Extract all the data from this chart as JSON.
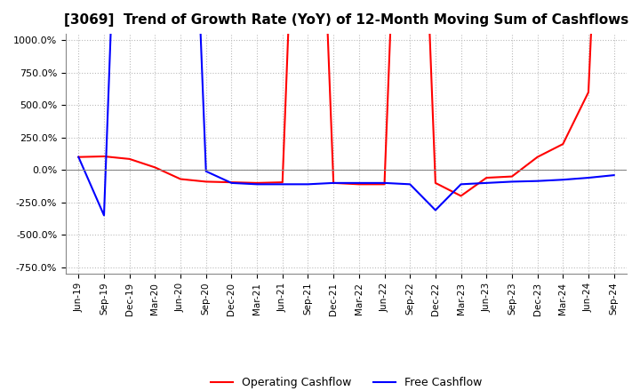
{
  "title": "[3069]  Trend of Growth Rate (YoY) of 12-Month Moving Sum of Cashflows",
  "title_fontsize": 11,
  "ylim": [
    -800,
    1050
  ],
  "yticks": [
    1000,
    750,
    500,
    250,
    0,
    -250,
    -500,
    -750
  ],
  "ytick_labels": [
    "1000.0%",
    "750.0%",
    "500.0%",
    "250.0%",
    "0.0%",
    "-250.0%",
    "-500.0%",
    "-750.0%"
  ],
  "x_labels": [
    "Jun-19",
    "Sep-19",
    "Dec-19",
    "Mar-20",
    "Jun-20",
    "Sep-20",
    "Dec-20",
    "Mar-21",
    "Jun-21",
    "Sep-21",
    "Dec-21",
    "Mar-22",
    "Jun-22",
    "Sep-22",
    "Dec-22",
    "Mar-23",
    "Jun-23",
    "Sep-23",
    "Dec-23",
    "Mar-24",
    "Jun-24",
    "Sep-24"
  ],
  "operating_cashflow": [
    100,
    105,
    85,
    20,
    -70,
    -90,
    -95,
    -100,
    -95,
    5000,
    -100,
    -110,
    -110,
    5000,
    -100,
    -200,
    -60,
    -50,
    100,
    200,
    600,
    5000
  ],
  "free_cashflow": [
    100,
    -350,
    5000,
    5000,
    5000,
    -10,
    -100,
    -110,
    -110,
    -110,
    -100,
    -100,
    -100,
    -110,
    -310,
    -110,
    -100,
    -90,
    -85,
    -75,
    -60,
    -40
  ],
  "operating_color": "#ff0000",
  "free_color": "#0000ff",
  "background_color": "#ffffff",
  "grid_color": "#bbbbbb",
  "legend_loc": "lower center",
  "legend_ncol": 2
}
